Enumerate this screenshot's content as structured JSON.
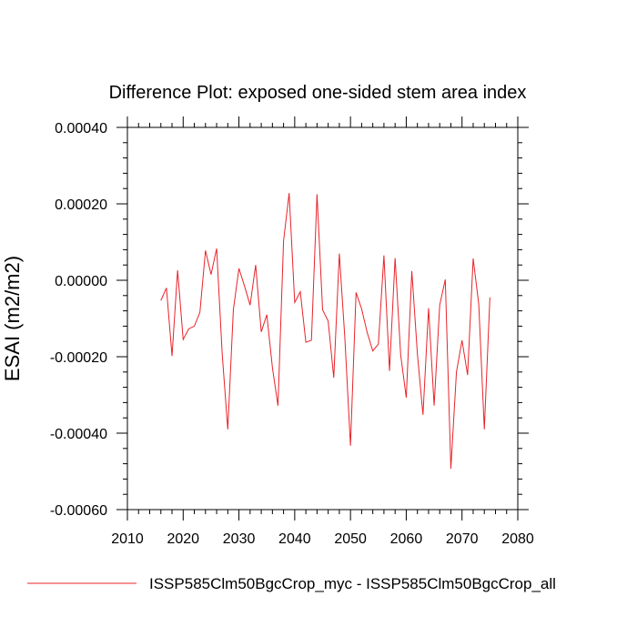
{
  "chart_data": {
    "type": "line",
    "title": "Difference Plot: exposed one-sided stem area index",
    "xlabel": "",
    "ylabel": "ESAI  (m2/m2)",
    "xlim": [
      2010,
      2080
    ],
    "ylim": [
      -0.0006,
      0.0004
    ],
    "xticks": [
      2010,
      2020,
      2030,
      2040,
      2050,
      2060,
      2070,
      2080
    ],
    "xtick_labels": [
      "2010",
      "2020",
      "2030",
      "2040",
      "2050",
      "2060",
      "2070",
      "2080"
    ],
    "yticks": [
      -0.0006,
      -0.0004,
      -0.0002,
      0.0,
      0.0002,
      0.0004
    ],
    "ytick_labels": [
      "-0.00060",
      "-0.00040",
      "-0.00020",
      "0.00000",
      "0.00020",
      "0.00040"
    ],
    "grid": false,
    "legend_position": "bottom",
    "series": [
      {
        "name": "ISSP585Clm50BgcCrop_myc - ISSP585Clm50BgcCrop_all",
        "color": "#e8232a",
        "x": [
          2016,
          2017,
          2018,
          2019,
          2020,
          2021,
          2022,
          2023,
          2024,
          2025,
          2026,
          2027,
          2028,
          2029,
          2030,
          2031,
          2032,
          2033,
          2034,
          2035,
          2036,
          2037,
          2038,
          2039,
          2040,
          2041,
          2042,
          2043,
          2044,
          2045,
          2046,
          2047,
          2048,
          2049,
          2050,
          2051,
          2052,
          2053,
          2054,
          2055,
          2056,
          2057,
          2058,
          2059,
          2060,
          2061,
          2062,
          2063,
          2064,
          2065,
          2066,
          2067,
          2068,
          2069,
          2070,
          2071,
          2072,
          2073,
          2074,
          2075
        ],
        "y": [
          -5.3e-05,
          -2e-05,
          -0.000198,
          2.6e-05,
          -0.000155,
          -0.000127,
          -0.00012,
          -8.4e-05,
          7.8e-05,
          1.5e-05,
          8.3e-05,
          -0.000193,
          -0.00039,
          -7.7e-05,
          3.1e-05,
          -1.5e-05,
          -6.5e-05,
          4e-05,
          -0.000135,
          -9e-05,
          -0.000228,
          -0.000328,
          0.000103,
          0.000228,
          -5.8e-05,
          -3e-05,
          -0.000162,
          -0.000157,
          0.000225,
          -7.7e-05,
          -0.000107,
          -0.000255,
          7e-05,
          -0.000153,
          -0.000433,
          -3.2e-05,
          -7.5e-05,
          -0.000137,
          -0.000185,
          -0.000167,
          6.5e-05,
          -0.000237,
          5.8e-05,
          -0.000195,
          -0.000307,
          2.4e-05,
          -0.000193,
          -0.000352,
          -7.3e-05,
          -0.000328,
          -6.5e-05,
          2e-06,
          -0.000493,
          -0.00024,
          -0.000157,
          -0.000248,
          5.7e-05,
          -6.3e-05,
          -0.00039,
          -4.5e-05
        ]
      }
    ]
  }
}
